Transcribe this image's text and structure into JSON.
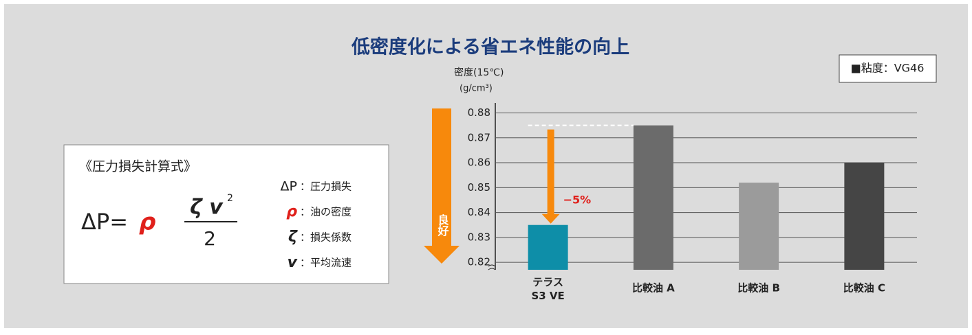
{
  "chart_data": {
    "type": "bar",
    "title": "低密度化による省エネ性能の向上",
    "badge": "■粘度：VG46",
    "y_label": "密度(15℃)",
    "y_unit": "(g/cm³)",
    "arrow_label": "良好",
    "annotation": "−5%",
    "categories": [
      "テラス\nS3 VE",
      "比較油 A",
      "比較油 B",
      "比較油 C"
    ],
    "values": [
      0.835,
      0.875,
      0.852,
      0.86
    ],
    "colors": [
      "#0e8ea8",
      "#6b6b6b",
      "#9b9b9b",
      "#454545"
    ],
    "ylim": [
      0.817,
      0.884
    ],
    "yticks": [
      0.82,
      0.83,
      0.84,
      0.85,
      0.86,
      0.87,
      0.88
    ],
    "grid": true
  },
  "formula": {
    "title": "《圧力損失計算式》",
    "lhs": "ΔP=",
    "rho": "ρ",
    "numerator": "ζ v",
    "exponent": "2",
    "denominator": "2",
    "legend": [
      {
        "symbol": "ΔP",
        "text": "：圧力損失"
      },
      {
        "symbol": "ρ",
        "text": "：油の密度"
      },
      {
        "symbol": "ζ",
        "text": "：損失係数"
      },
      {
        "symbol": "v",
        "text": "：平均流速"
      }
    ]
  }
}
